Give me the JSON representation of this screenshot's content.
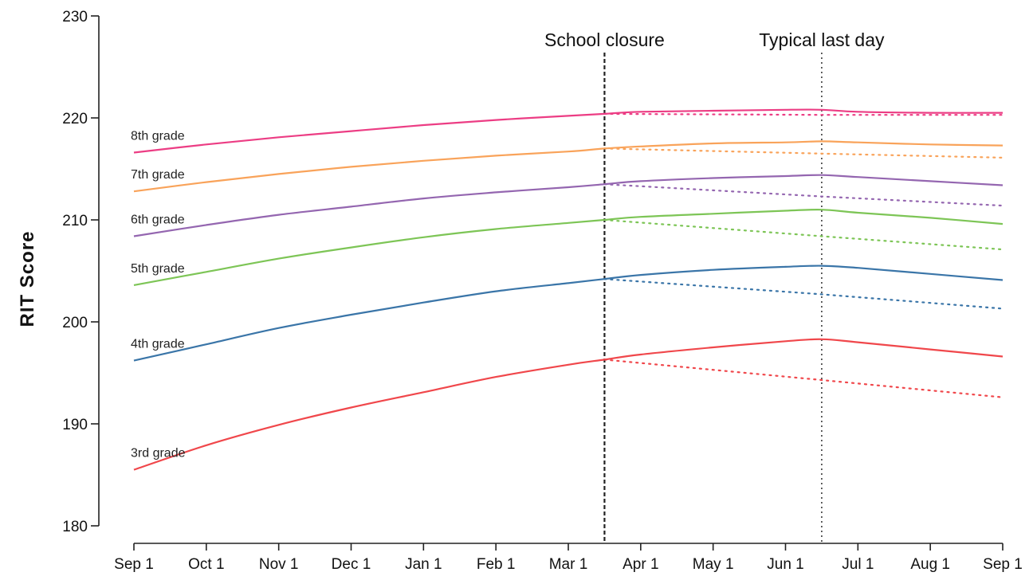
{
  "chart_data": {
    "type": "line",
    "title": "",
    "xlabel": "",
    "ylabel": "RIT Score",
    "ylim": [
      180,
      230
    ],
    "yticks": [
      180,
      190,
      200,
      210,
      220,
      230
    ],
    "x_tick_labels": [
      "Sep 1",
      "Oct 1",
      "Nov 1",
      "Dec 1",
      "Jan 1",
      "Feb 1",
      "Mar 1",
      "Apr 1",
      "May 1",
      "Jun 1",
      "Jul 1",
      "Aug 1",
      "Sep 1"
    ],
    "grid": false,
    "annotations": [
      {
        "label": "School closure",
        "at_month": 6.5,
        "style": "dashed"
      },
      {
        "label": "Typical last day",
        "at_month": 9.5,
        "style": "dotted"
      }
    ],
    "series": [
      {
        "name": "3rd grade",
        "color": "#f0474b",
        "solid": [
          [
            0,
            185.5
          ],
          [
            1,
            187.9
          ],
          [
            2,
            189.9
          ],
          [
            3,
            191.6
          ],
          [
            4,
            193.1
          ],
          [
            5,
            194.6
          ],
          [
            6,
            195.8
          ],
          [
            6.5,
            196.3
          ],
          [
            7,
            196.8
          ],
          [
            8,
            197.5
          ],
          [
            9,
            198.1
          ],
          [
            9.5,
            198.3
          ],
          [
            10,
            198.0
          ],
          [
            11,
            197.3
          ],
          [
            12,
            196.6
          ]
        ],
        "dotted": [
          [
            6.5,
            196.3
          ],
          [
            9.5,
            194.3
          ],
          [
            12,
            192.6
          ]
        ]
      },
      {
        "name": "4th grade",
        "color": "#3a75a8",
        "solid": [
          [
            0,
            196.2
          ],
          [
            1,
            197.8
          ],
          [
            2,
            199.4
          ],
          [
            3,
            200.7
          ],
          [
            4,
            201.9
          ],
          [
            5,
            203.0
          ],
          [
            6,
            203.8
          ],
          [
            6.5,
            204.2
          ],
          [
            7,
            204.6
          ],
          [
            8,
            205.1
          ],
          [
            9,
            205.4
          ],
          [
            9.5,
            205.5
          ],
          [
            10,
            205.3
          ],
          [
            11,
            204.7
          ],
          [
            12,
            204.1
          ]
        ],
        "dotted": [
          [
            6.5,
            204.2
          ],
          [
            9.5,
            202.7
          ],
          [
            12,
            201.3
          ]
        ]
      },
      {
        "name": "5th grade",
        "color": "#7dc556",
        "solid": [
          [
            0,
            203.6
          ],
          [
            1,
            204.9
          ],
          [
            2,
            206.2
          ],
          [
            3,
            207.3
          ],
          [
            4,
            208.3
          ],
          [
            5,
            209.1
          ],
          [
            6,
            209.7
          ],
          [
            6.5,
            210.0
          ],
          [
            7,
            210.3
          ],
          [
            8,
            210.6
          ],
          [
            9,
            210.9
          ],
          [
            9.5,
            211.0
          ],
          [
            10,
            210.7
          ],
          [
            11,
            210.2
          ],
          [
            12,
            209.6
          ]
        ],
        "dotted": [
          [
            6.5,
            210.0
          ],
          [
            9.5,
            208.4
          ],
          [
            12,
            207.1
          ]
        ]
      },
      {
        "name": "6th grade",
        "color": "#9466b0",
        "solid": [
          [
            0,
            208.4
          ],
          [
            1,
            209.5
          ],
          [
            2,
            210.5
          ],
          [
            3,
            211.3
          ],
          [
            4,
            212.1
          ],
          [
            5,
            212.7
          ],
          [
            6,
            213.2
          ],
          [
            6.5,
            213.5
          ],
          [
            7,
            213.8
          ],
          [
            8,
            214.1
          ],
          [
            9,
            214.3
          ],
          [
            9.5,
            214.4
          ],
          [
            10,
            214.2
          ],
          [
            11,
            213.8
          ],
          [
            12,
            213.4
          ]
        ],
        "dotted": [
          [
            6.5,
            213.5
          ],
          [
            9.5,
            212.3
          ],
          [
            12,
            211.4
          ]
        ]
      },
      {
        "name": "7th grade",
        "color": "#f9a35a",
        "solid": [
          [
            0,
            212.8
          ],
          [
            1,
            213.7
          ],
          [
            2,
            214.5
          ],
          [
            3,
            215.2
          ],
          [
            4,
            215.8
          ],
          [
            5,
            216.3
          ],
          [
            6,
            216.7
          ],
          [
            6.5,
            217.0
          ],
          [
            7,
            217.2
          ],
          [
            8,
            217.5
          ],
          [
            9,
            217.6
          ],
          [
            9.5,
            217.7
          ],
          [
            10,
            217.6
          ],
          [
            11,
            217.4
          ],
          [
            12,
            217.3
          ]
        ],
        "dotted": [
          [
            6.5,
            217.0
          ],
          [
            9.5,
            216.5
          ],
          [
            12,
            216.1
          ]
        ]
      },
      {
        "name": "8th grade",
        "color": "#ec3d84",
        "solid": [
          [
            0,
            216.6
          ],
          [
            1,
            217.4
          ],
          [
            2,
            218.1
          ],
          [
            3,
            218.7
          ],
          [
            4,
            219.3
          ],
          [
            5,
            219.8
          ],
          [
            6,
            220.2
          ],
          [
            6.5,
            220.4
          ],
          [
            7,
            220.6
          ],
          [
            8,
            220.7
          ],
          [
            9,
            220.8
          ],
          [
            9.5,
            220.8
          ],
          [
            10,
            220.6
          ],
          [
            11,
            220.5
          ],
          [
            12,
            220.5
          ]
        ],
        "dotted": [
          [
            6.5,
            220.4
          ],
          [
            9.5,
            220.3
          ],
          [
            12,
            220.3
          ]
        ]
      }
    ]
  }
}
